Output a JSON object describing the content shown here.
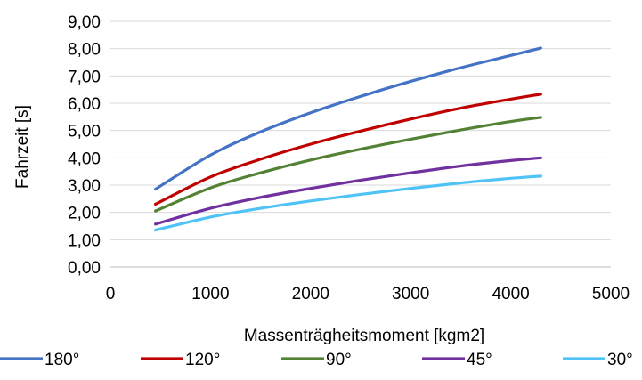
{
  "chart_data": {
    "type": "line",
    "xlabel": "Massenträgheitsmoment [kgm2]",
    "ylabel": "Fahrzeit [s]",
    "xlim": [
      0,
      5000
    ],
    "ylim": [
      0,
      9
    ],
    "x_ticks": [
      "0",
      "1000",
      "2000",
      "3000",
      "4000",
      "5000"
    ],
    "y_ticks": [
      "0,00",
      "1,00",
      "2,00",
      "3,00",
      "4,00",
      "5,00",
      "6,00",
      "7,00",
      "8,00",
      "9,00"
    ],
    "grid": "horizontal",
    "legend_position": "bottom",
    "x": [
      450,
      1000,
      1500,
      2000,
      2500,
      3000,
      3500,
      4000,
      4300
    ],
    "series": [
      {
        "name": "180°",
        "color": "#4472C4",
        "values": [
          2.85,
          4.1,
          4.95,
          5.65,
          6.25,
          6.8,
          7.3,
          7.75,
          8.02
        ]
      },
      {
        "name": "120°",
        "color": "#C00000",
        "values": [
          2.3,
          3.3,
          3.95,
          4.5,
          4.98,
          5.42,
          5.82,
          6.15,
          6.33
        ]
      },
      {
        "name": "90°",
        "color": "#548235",
        "values": [
          2.05,
          2.9,
          3.45,
          3.92,
          4.32,
          4.68,
          5.02,
          5.33,
          5.48
        ]
      },
      {
        "name": "45°",
        "color": "#7030A0",
        "values": [
          1.57,
          2.15,
          2.55,
          2.88,
          3.18,
          3.45,
          3.7,
          3.9,
          4.0
        ]
      },
      {
        "name": "30°",
        "color": "#4FC3F7",
        "values": [
          1.35,
          1.83,
          2.15,
          2.42,
          2.66,
          2.88,
          3.08,
          3.25,
          3.33
        ]
      }
    ]
  }
}
